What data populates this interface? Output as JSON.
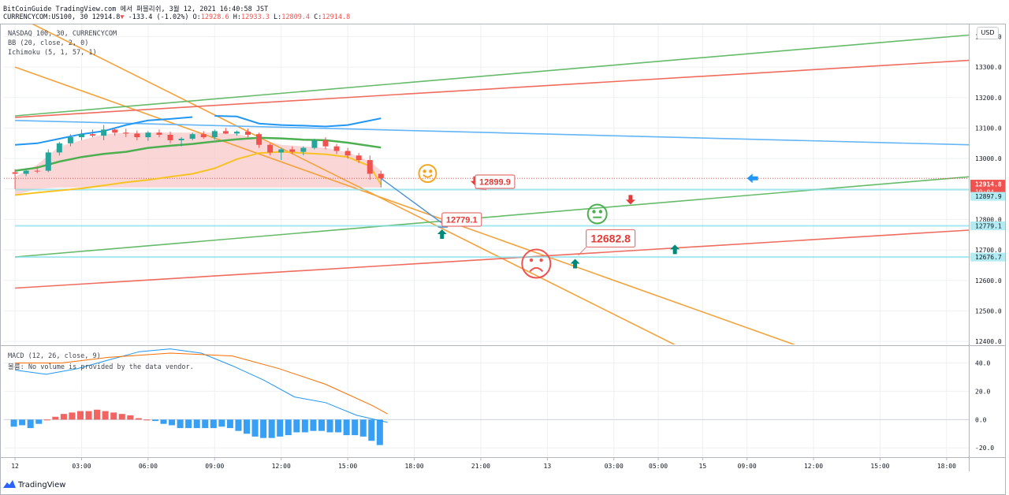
{
  "header": {
    "line1": "BitCoinGuide TradingView.com 에서 퍼블리쉬, 3월 12, 2021 16:40:58 JST",
    "symbol": "CURRENCYCOM:US100, 30",
    "last": "12914.8",
    "change": "-133.4 (-1.02%)",
    "o_label": "O:",
    "o": "12928.6",
    "h_label": "H:",
    "h": "12933.3",
    "l_label": "L:",
    "l": "12809.4",
    "c_label": "C:",
    "c": "12914.8"
  },
  "legend": {
    "line1": "NASDAQ 100, 30, CURRENCYCOM",
    "line2": "BB (20, close, 2, 0)",
    "line3": "Ichimoku (5, 1, 57, 1)",
    "macd": "MACD (12, 26, close, 9)",
    "note": "볼륨: No volume is provided by the data vendor."
  },
  "currency_button": "USD",
  "branding": "TradingView",
  "colors": {
    "up": "#26a69a",
    "down": "#ef5350",
    "bb": "#2196f3",
    "tenkan": "#f7c324",
    "kijun": "#4caf50",
    "orange_line": "#f5a23b",
    "green_line": "#66bb6a",
    "red_line": "#ef6c5e",
    "blue_line": "#64b5f6",
    "cyan": "#80deea",
    "cloud": "#f8c8c8",
    "macd_line": "#2196f3",
    "signal_line": "#ff6d00"
  },
  "chart_data": [
    {
      "type": "candlestick",
      "title": "NASDAQ 100, 30, CURRENCYCOM",
      "y_axis_ticks": [
        13400,
        13300,
        13200,
        13100,
        13000,
        12900,
        12800,
        12700,
        12600,
        12500,
        12400
      ],
      "x_axis_ticks": [
        {
          "label": "12",
          "t": 0
        },
        {
          "label": "03:00",
          "t": 6
        },
        {
          "label": "06:00",
          "t": 12
        },
        {
          "label": "09:00",
          "t": 18
        },
        {
          "label": "12:00",
          "t": 24
        },
        {
          "label": "15:00",
          "t": 30
        },
        {
          "label": "18:00",
          "t": 36
        },
        {
          "label": "21:00",
          "t": 42
        },
        {
          "label": "13",
          "t": 48
        },
        {
          "label": "03:00",
          "t": 54
        },
        {
          "label": "05:00",
          "t": 58
        },
        {
          "label": "15",
          "t": 62
        },
        {
          "label": "09:00",
          "t": 66
        },
        {
          "label": "12:00",
          "t": 72
        },
        {
          "label": "15:00",
          "t": 78
        },
        {
          "label": "18:00",
          "t": 84
        }
      ],
      "ylim": [
        12390,
        13440
      ],
      "xlim": [
        -1,
        86
      ],
      "candles": [
        [
          12955,
          12965,
          12900,
          12950
        ],
        [
          12950,
          12968,
          12942,
          12960
        ],
        [
          12960,
          12975,
          12952,
          12958
        ],
        [
          12960,
          13030,
          12955,
          13020
        ],
        [
          13020,
          13055,
          13010,
          13050
        ],
        [
          13050,
          13080,
          13040,
          13070
        ],
        [
          13070,
          13095,
          13060,
          13080
        ],
        [
          13080,
          13095,
          13070,
          13075
        ],
        [
          13075,
          13110,
          13060,
          13095
        ],
        [
          13095,
          13100,
          13075,
          13085
        ],
        [
          13085,
          13098,
          13070,
          13082
        ],
        [
          13082,
          13092,
          13060,
          13070
        ],
        [
          13070,
          13090,
          13058,
          13085
        ],
        [
          13085,
          13095,
          13070,
          13078
        ],
        [
          13078,
          13088,
          13050,
          13060
        ],
        [
          13060,
          13070,
          13040,
          13065
        ],
        [
          13065,
          13085,
          13060,
          13080
        ],
        [
          13080,
          13090,
          13065,
          13070
        ],
        [
          13070,
          13095,
          13062,
          13090
        ],
        [
          13090,
          13100,
          13080,
          13082
        ],
        [
          13082,
          13092,
          13075,
          13088
        ],
        [
          13088,
          13098,
          13070,
          13078
        ],
        [
          13080,
          13085,
          13035,
          13045
        ],
        [
          13045,
          13050,
          13010,
          13020
        ],
        [
          13020,
          13035,
          12995,
          13030
        ],
        [
          13030,
          13040,
          13015,
          13022
        ],
        [
          13022,
          13040,
          13010,
          13035
        ],
        [
          13035,
          13065,
          13030,
          13060
        ],
        [
          13060,
          13070,
          13030,
          13040
        ],
        [
          13040,
          13048,
          13015,
          13025
        ],
        [
          13025,
          13035,
          13000,
          13010
        ],
        [
          13010,
          13018,
          12985,
          12995
        ],
        [
          12995,
          13010,
          12930,
          12950
        ],
        [
          12950,
          12960,
          12905,
          12935
        ]
      ],
      "trend_lines": [
        {
          "color": "orange_line",
          "points": [
            [
              0,
              13300
            ],
            [
              71,
              12380
            ]
          ]
        },
        {
          "color": "orange_line",
          "points": [
            [
              0,
              13470
            ],
            [
              60,
              12380
            ]
          ]
        },
        {
          "color": "green_line",
          "points": [
            [
              0,
              13140
            ],
            [
              86,
              13405
            ]
          ]
        },
        {
          "color": "red_line",
          "points": [
            [
              0,
              13135
            ],
            [
              86,
              13322
            ]
          ]
        },
        {
          "color": "blue_line",
          "points": [
            [
              0,
              13125
            ],
            [
              86,
              13045
            ]
          ]
        },
        {
          "color": "green_line",
          "points": [
            [
              0,
              12677
            ],
            [
              86,
              12940
            ]
          ]
        },
        {
          "color": "red_line",
          "points": [
            [
              0,
              12575
            ],
            [
              86,
              12765
            ]
          ]
        },
        {
          "color": "cyan",
          "points": [
            [
              0,
              12897.9
            ],
            [
              86,
              12897.9
            ]
          ]
        },
        {
          "color": "cyan",
          "points": [
            [
              0,
              12779.1
            ],
            [
              86,
              12779.1
            ]
          ]
        },
        {
          "color": "cyan",
          "points": [
            [
              0,
              12676.7
            ],
            [
              86,
              12676.7
            ]
          ]
        }
      ],
      "bb_upper": [
        [
          18,
          13140
        ],
        [
          20,
          13138
        ],
        [
          22,
          13115
        ],
        [
          24,
          13110
        ],
        [
          26,
          13108
        ],
        [
          28,
          13105
        ],
        [
          30,
          13110
        ],
        [
          33,
          13132
        ]
      ],
      "bb_prefix_upper": [
        [
          0,
          13045
        ],
        [
          2,
          13050
        ],
        [
          4,
          13065
        ],
        [
          6,
          13080
        ],
        [
          8,
          13090
        ],
        [
          10,
          13110
        ],
        [
          12,
          13125
        ],
        [
          14,
          13130
        ],
        [
          16,
          13136
        ]
      ],
      "kijun": [
        [
          0,
          12960
        ],
        [
          2,
          12970
        ],
        [
          4,
          12990
        ],
        [
          6,
          13005
        ],
        [
          8,
          13015
        ],
        [
          10,
          13022
        ],
        [
          12,
          13035
        ],
        [
          14,
          13042
        ],
        [
          16,
          13048
        ],
        [
          18,
          13056
        ],
        [
          20,
          13063
        ],
        [
          22,
          13068
        ],
        [
          24,
          13066
        ],
        [
          26,
          13062
        ],
        [
          28,
          13060
        ],
        [
          30,
          13052
        ],
        [
          33,
          13036
        ]
      ],
      "tenkan": [
        [
          0,
          12880
        ],
        [
          2,
          12888
        ],
        [
          4,
          12895
        ],
        [
          6,
          12902
        ],
        [
          8,
          12912
        ],
        [
          10,
          12922
        ],
        [
          12,
          12930
        ],
        [
          14,
          12940
        ],
        [
          16,
          12950
        ],
        [
          18,
          12968
        ],
        [
          20,
          12998
        ],
        [
          22,
          13018
        ],
        [
          24,
          13022
        ],
        [
          26,
          13018
        ],
        [
          28,
          13014
        ],
        [
          30,
          13005
        ],
        [
          32,
          12975
        ],
        [
          33,
          12915
        ]
      ],
      "cloud_upper": [
        [
          0,
          12940
        ],
        [
          2,
          12980
        ],
        [
          4,
          13040
        ],
        [
          6,
          13060
        ],
        [
          8,
          13080
        ],
        [
          10,
          13085
        ],
        [
          12,
          13085
        ],
        [
          14,
          13085
        ],
        [
          16,
          13085
        ],
        [
          18,
          13085
        ],
        [
          20,
          13080
        ],
        [
          22,
          13065
        ],
        [
          24,
          13045
        ],
        [
          26,
          13040
        ],
        [
          28,
          13035
        ],
        [
          30,
          13020
        ],
        [
          32,
          12990
        ],
        [
          33,
          12960
        ]
      ],
      "cloud_lower": [
        [
          0,
          12880
        ],
        [
          2,
          12900
        ],
        [
          4,
          12905
        ],
        [
          6,
          12905
        ],
        [
          8,
          12905
        ],
        [
          10,
          12905
        ],
        [
          12,
          12905
        ],
        [
          14,
          12905
        ],
        [
          16,
          12905
        ],
        [
          18,
          12905
        ],
        [
          20,
          12905
        ],
        [
          22,
          12905
        ],
        [
          24,
          12905
        ],
        [
          26,
          12905
        ],
        [
          28,
          12905
        ],
        [
          30,
          12905
        ],
        [
          32,
          12905
        ],
        [
          33,
          12905
        ]
      ],
      "forecast_arrow": [
        [
          33,
          12935
        ],
        [
          39,
          12775
        ]
      ],
      "annotations": [
        {
          "text": "12899.9",
          "t": 41.5,
          "price": 12924
        },
        {
          "text": "12779.1",
          "t": 38.5,
          "price": 12800
        },
        {
          "text": "12682.8",
          "t": 51.5,
          "price": 12738
        }
      ],
      "price_labels": [
        {
          "text": "12914.8",
          "sub": "19:04",
          "price": 12914.8,
          "bg": "#ef5350"
        },
        {
          "text": "12897.9",
          "price": 12876,
          "bg": "#b2ebf2"
        },
        {
          "text": "12779.1",
          "price": 12779.1,
          "bg": "#b2ebf2"
        },
        {
          "text": "12676.7",
          "price": 12676.7,
          "bg": "#b2ebf2"
        }
      ]
    },
    {
      "type": "bar",
      "title": "MACD (12, 26, close, 9)",
      "y_axis_ticks": [
        40.0,
        20.0,
        0.0,
        -20.0
      ],
      "ylim": [
        -26,
        52
      ],
      "histogram": [
        -5,
        -4,
        -6,
        -3,
        0,
        2,
        4,
        5,
        6,
        6,
        7,
        6,
        5,
        4,
        3,
        1,
        0,
        -1,
        -3,
        -4,
        -6,
        -6,
        -6,
        -6,
        -6,
        -5,
        -6,
        -8,
        -10,
        -12,
        -13,
        -13,
        -12,
        -11,
        -9,
        -9,
        -8,
        -8,
        -9,
        -9,
        -11,
        -11,
        -12,
        -15,
        -18
      ],
      "macd_line": [
        [
          0,
          35
        ],
        [
          4,
          32
        ],
        [
          8,
          36
        ],
        [
          12,
          42
        ],
        [
          16,
          48
        ],
        [
          20,
          50
        ],
        [
          24,
          47
        ],
        [
          28,
          38
        ],
        [
          32,
          28
        ],
        [
          36,
          16
        ],
        [
          40,
          12
        ],
        [
          44,
          3
        ],
        [
          48,
          -2
        ]
      ],
      "signal_line": [
        [
          0,
          40
        ],
        [
          6,
          40
        ],
        [
          12,
          44
        ],
        [
          20,
          47
        ],
        [
          28,
          45
        ],
        [
          34,
          36
        ],
        [
          40,
          25
        ],
        [
          46,
          10
        ],
        [
          48,
          4
        ]
      ]
    }
  ]
}
